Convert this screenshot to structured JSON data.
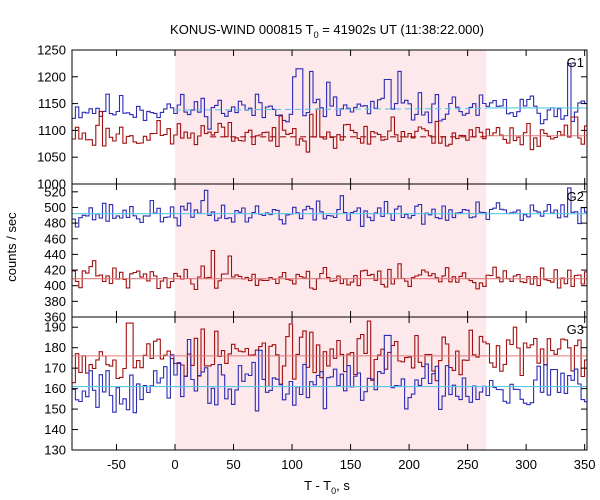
{
  "title": {
    "prefix": "KONUS-WIND 000815 T",
    "sub": "0",
    "suffix": " = 41902s UT (11:38:22.000)"
  },
  "ylabel": "counts / sec",
  "xlabel": {
    "prefix": "T - T",
    "sub": "0",
    "suffix": ", s"
  },
  "colors": {
    "series_high": "#2b2bb5",
    "series_low": "#a01010",
    "bg_high": "#5bc8e8",
    "bg_low": "#e07a7a",
    "highlight": "#fde9ec",
    "axis": "#000000"
  },
  "chart_data": [
    {
      "type": "line",
      "panel": "G1",
      "xlim": [
        -88,
        352
      ],
      "ylim": [
        1000,
        1250
      ],
      "xticks": [
        -50,
        0,
        50,
        100,
        150,
        200,
        250,
        300,
        350
      ],
      "yticks": [
        1000,
        1050,
        1100,
        1150,
        1200,
        1250
      ],
      "highlight": [
        0,
        266
      ],
      "series": [
        {
          "color": "#2b2bb5",
          "style": "steps",
          "mean": 1140,
          "amp": 22,
          "seed": 11,
          "peaks": [
            [
              100,
              1200
            ],
            [
              105,
              1215
            ],
            [
              115,
              1210
            ],
            [
              130,
              1190
            ],
            [
              180,
              1195
            ],
            [
              190,
              1210
            ],
            [
              335,
              1225
            ]
          ]
        },
        {
          "color": "#a01010",
          "style": "steps",
          "mean": 1092,
          "amp": 20,
          "seed": 23,
          "peaks": [
            [
              115,
              1130
            ],
            [
              120,
              1140
            ],
            [
              185,
              1125
            ],
            [
              -65,
              1135
            ],
            [
              340,
              1125
            ]
          ]
        }
      ],
      "background": [
        {
          "color": "#5bc8e8",
          "dashed": true,
          "y": [
            1138,
            1141
          ],
          "x": [
            0,
            266
          ]
        },
        {
          "color": "#5bc8e8",
          "dashed": false,
          "y": [
            1142,
            1142
          ],
          "x": [
            266,
            352
          ]
        },
        {
          "color": "#a01010",
          "dashed": true,
          "y": [
            1088,
            1088
          ],
          "x": [
            30,
            266
          ]
        },
        {
          "color": "#e07a7a",
          "dashed": false,
          "y": [
            1090,
            1090
          ],
          "x": [
            266,
            352
          ]
        }
      ]
    },
    {
      "type": "line",
      "panel": "G2",
      "xlim": [
        -88,
        352
      ],
      "ylim": [
        360,
        530
      ],
      "xticks": [
        -50,
        0,
        50,
        100,
        150,
        200,
        250,
        300,
        350
      ],
      "yticks": [
        360,
        380,
        400,
        420,
        440,
        460,
        480,
        500,
        520
      ],
      "highlight": [
        0,
        266
      ],
      "series": [
        {
          "color": "#2b2bb5",
          "style": "steps",
          "mean": 492,
          "amp": 12,
          "seed": 37,
          "peaks": [
            [
              25,
              522
            ],
            [
              140,
              515
            ],
            [
              335,
              525
            ]
          ]
        },
        {
          "color": "#a01010",
          "style": "steps",
          "mean": 410,
          "amp": 11,
          "seed": 41,
          "peaks": [
            [
              30,
              445
            ],
            [
              45,
              438
            ],
            [
              -70,
              432
            ],
            [
              190,
              428
            ]
          ]
        }
      ],
      "background": [
        {
          "color": "#5bc8e8",
          "dashed": false,
          "y": [
            492,
            492
          ],
          "x": [
            -88,
            352
          ]
        },
        {
          "color": "#e07a7a",
          "dashed": false,
          "y": [
            409,
            409
          ],
          "x": [
            -88,
            352
          ]
        }
      ]
    },
    {
      "type": "line",
      "panel": "G3",
      "xlim": [
        -88,
        352
      ],
      "ylim": [
        130,
        195
      ],
      "xticks": [
        -50,
        0,
        50,
        100,
        150,
        200,
        250,
        300,
        350
      ],
      "yticks": [
        130,
        140,
        150,
        160,
        170,
        180,
        190
      ],
      "highlight": [
        0,
        266
      ],
      "series": [
        {
          "color": "#a01010",
          "style": "steps",
          "mean": 176,
          "amp": 10,
          "seed": 53,
          "peaks": [
            [
              -40,
              192
            ],
            [
              165,
              193
            ],
            [
              290,
              190
            ]
          ]
        },
        {
          "color": "#2b2bb5",
          "style": "steps",
          "mean": 162,
          "amp": 10,
          "seed": 67,
          "peaks": [
            [
              10,
              184
            ],
            [
              180,
              186
            ]
          ]
        }
      ],
      "background": [
        {
          "color": "#5bc8e8",
          "dashed": false,
          "y": [
            161,
            161
          ],
          "x": [
            -88,
            352
          ]
        },
        {
          "color": "#e07a7a",
          "dashed": false,
          "y": [
            176,
            176
          ],
          "x": [
            -88,
            352
          ]
        }
      ]
    }
  ],
  "panel_labels": [
    "G1",
    "G2",
    "G3"
  ]
}
